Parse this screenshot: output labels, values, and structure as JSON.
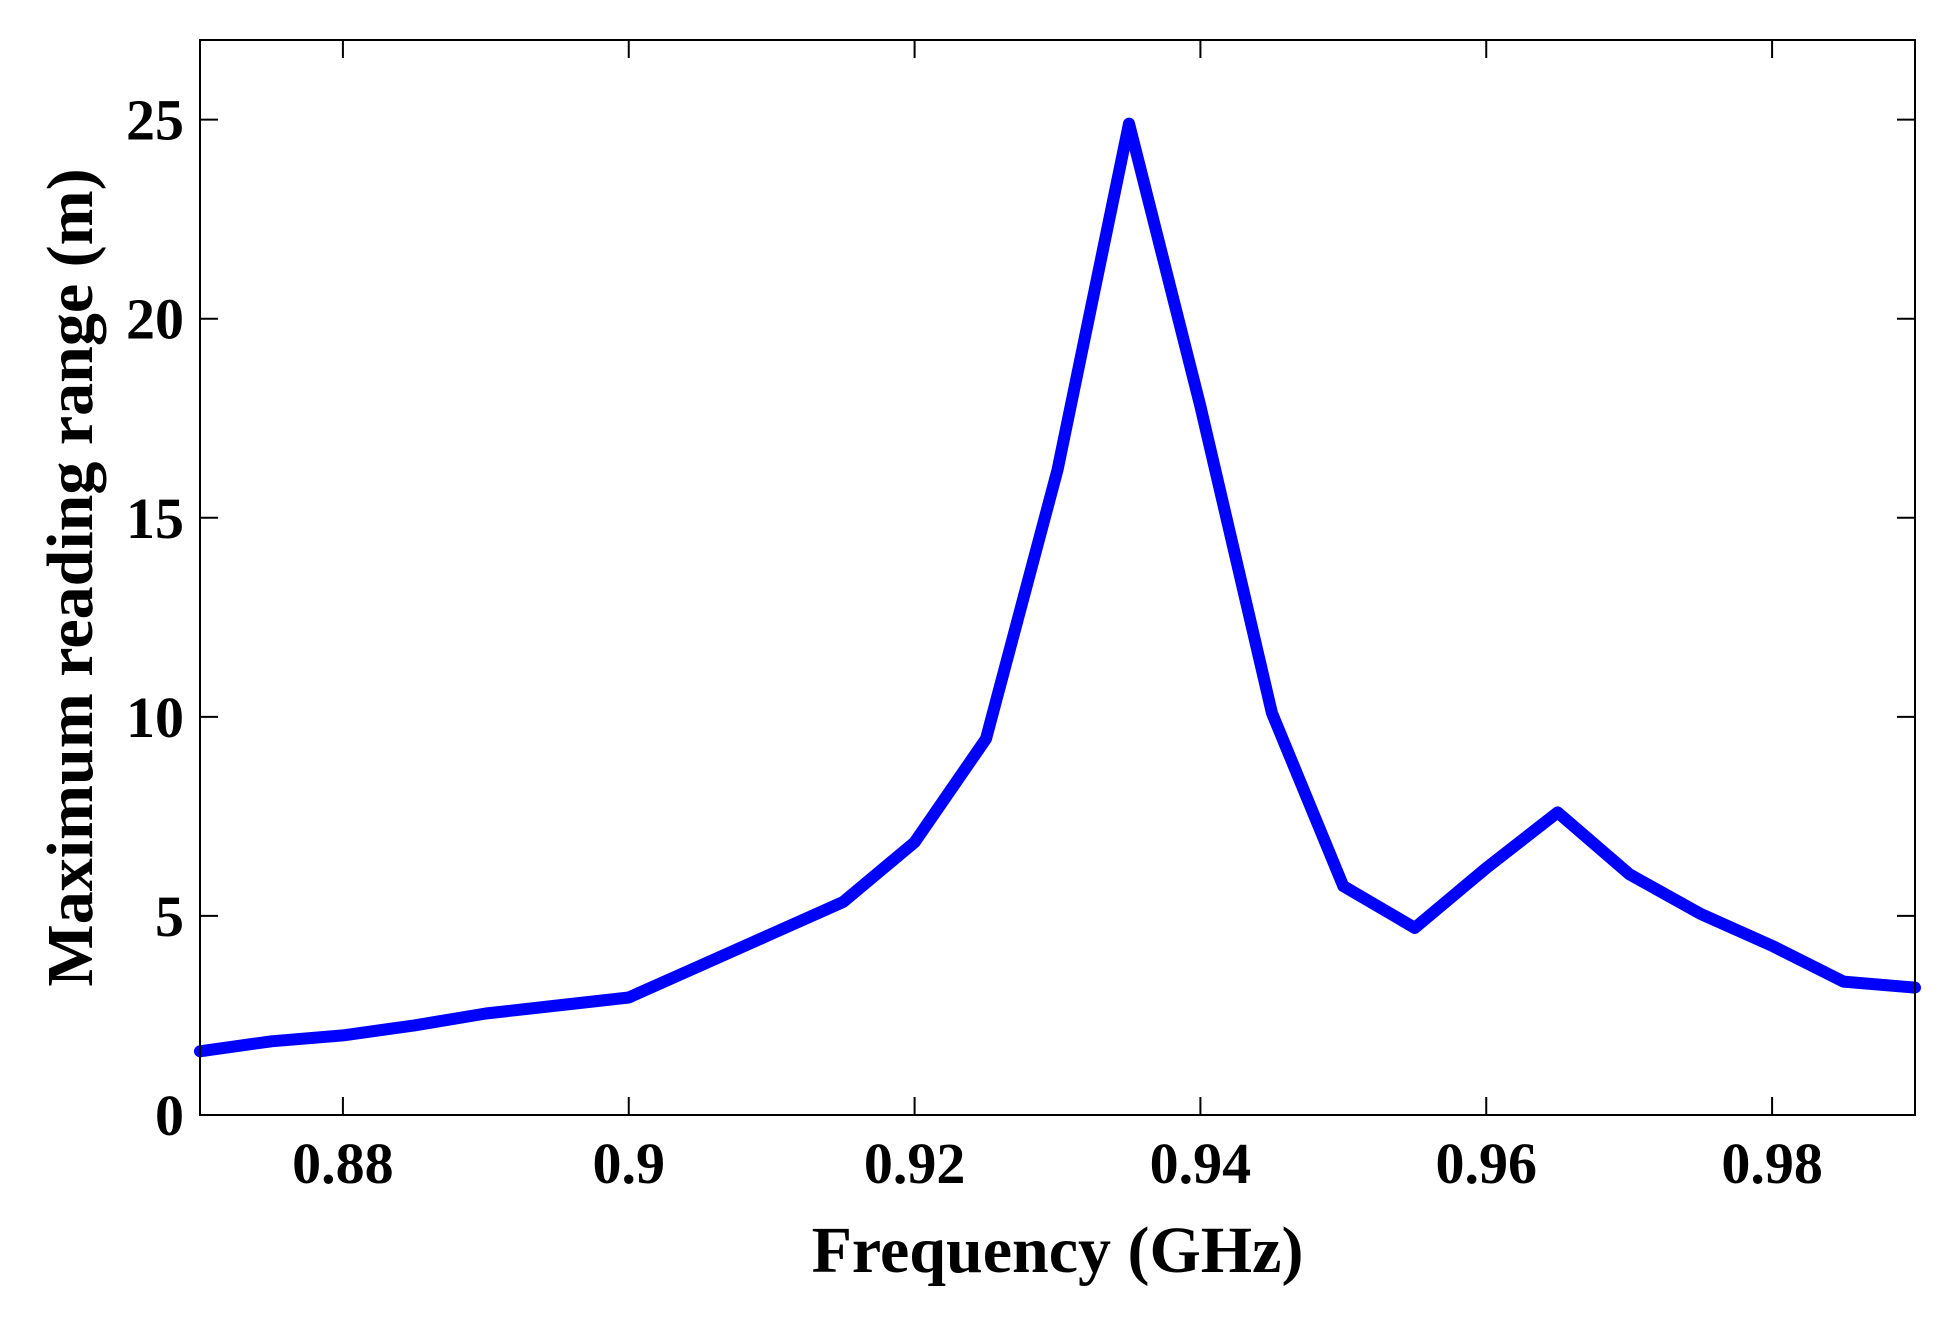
{
  "chart_data": {
    "type": "line",
    "title": "",
    "xlabel": "Frequency (GHz)",
    "ylabel": "Maximum reading range  (m)",
    "xlim": [
      0.87,
      0.99
    ],
    "ylim": [
      0,
      27
    ],
    "x_ticks": [
      0.88,
      0.9,
      0.92,
      0.94,
      0.96,
      0.98
    ],
    "x_tick_labels": [
      "0.88",
      "0.9",
      "0.92",
      "0.94",
      "0.96",
      "0.98"
    ],
    "y_ticks": [
      0,
      5,
      10,
      15,
      20,
      25
    ],
    "y_tick_labels": [
      "0",
      "5",
      "10",
      "15",
      "20",
      "25"
    ],
    "grid": false,
    "legend": "none",
    "series": [
      {
        "color": "#0000ff",
        "x": [
          0.87,
          0.875,
          0.88,
          0.885,
          0.89,
          0.895,
          0.9,
          0.905,
          0.91,
          0.915,
          0.92,
          0.925,
          0.93,
          0.935,
          0.94,
          0.945,
          0.95,
          0.955,
          0.96,
          0.965,
          0.97,
          0.975,
          0.98,
          0.985,
          0.99
        ],
        "y": [
          1.6,
          1.85,
          2.0,
          2.25,
          2.55,
          2.75,
          2.95,
          3.75,
          4.55,
          5.35,
          6.85,
          9.45,
          16.2,
          24.9,
          17.8,
          10.1,
          5.75,
          4.7,
          6.2,
          7.6,
          6.05,
          5.05,
          4.25,
          3.35,
          3.2
        ]
      }
    ]
  }
}
